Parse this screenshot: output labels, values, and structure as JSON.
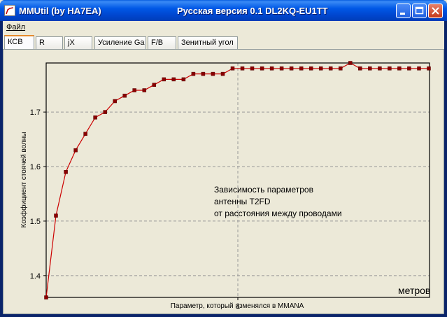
{
  "window": {
    "app_name": "MMUtil (by HA7EA)",
    "title": "Русская версия 0.1 DL2KQ-EU1TT"
  },
  "menu": {
    "file": "Файл"
  },
  "tabs": [
    {
      "label": "КСВ",
      "active": true
    },
    {
      "label": "R"
    },
    {
      "label": "jX"
    },
    {
      "label": "Усиление Ga"
    },
    {
      "label": "F/B"
    },
    {
      "label": "Зенитный угол"
    }
  ],
  "chart_data": {
    "type": "line",
    "xlabel": "Параметр, который изменялся в MMANA",
    "x_unit_label": "метров",
    "ylabel": "Коэффициент стоячей волны",
    "x_ticks": [
      "1"
    ],
    "y_ticks": [
      "1.4",
      "1.5",
      "1.6",
      "1.7"
    ],
    "ylim": [
      1.36,
      1.79
    ],
    "grid": true,
    "annotation": [
      "Зависимость параметров",
      "антенны T2FD",
      "от расстояния между проводами"
    ],
    "series": [
      {
        "color": "#CC0000",
        "marker_color": "#8B0000",
        "values": [
          1.36,
          1.51,
          1.59,
          1.63,
          1.66,
          1.69,
          1.7,
          1.72,
          1.73,
          1.74,
          1.74,
          1.75,
          1.76,
          1.76,
          1.76,
          1.77,
          1.77,
          1.77,
          1.77,
          1.78,
          1.78,
          1.78,
          1.78,
          1.78,
          1.78,
          1.78,
          1.78,
          1.78,
          1.78,
          1.78,
          1.78,
          1.79,
          1.78,
          1.78,
          1.78,
          1.78,
          1.78,
          1.78,
          1.78,
          1.78
        ]
      }
    ]
  }
}
